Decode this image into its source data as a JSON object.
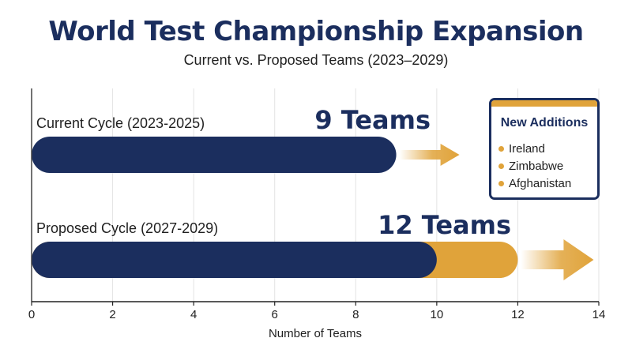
{
  "title": "World Test Championship Expansion",
  "subtitle": "Current vs. Proposed Teams (2023–2029)",
  "legend": {
    "title": "New Additions",
    "items": [
      "Ireland",
      "Zimbabwe",
      "Afghanistan"
    ]
  },
  "colors": {
    "primary": "#1b2e5e",
    "accent": "#e0a33a",
    "grid": "#e3e3e3"
  },
  "chart_data": {
    "type": "bar",
    "orientation": "horizontal",
    "categories": [
      "Current Cycle (2023-2025)",
      "Proposed Cycle (2027-2029)"
    ],
    "series": [
      {
        "values": [
          9,
          10
        ]
      },
      {
        "values": [
          0,
          2
        ]
      }
    ],
    "totals": [
      9,
      12
    ],
    "value_labels": [
      "9 Teams",
      "12 Teams"
    ],
    "xlabel": "Number of Teams",
    "xlim": [
      0,
      14
    ],
    "xticks": [
      0,
      2,
      4,
      6,
      8,
      10,
      12,
      14
    ],
    "grid": true
  }
}
